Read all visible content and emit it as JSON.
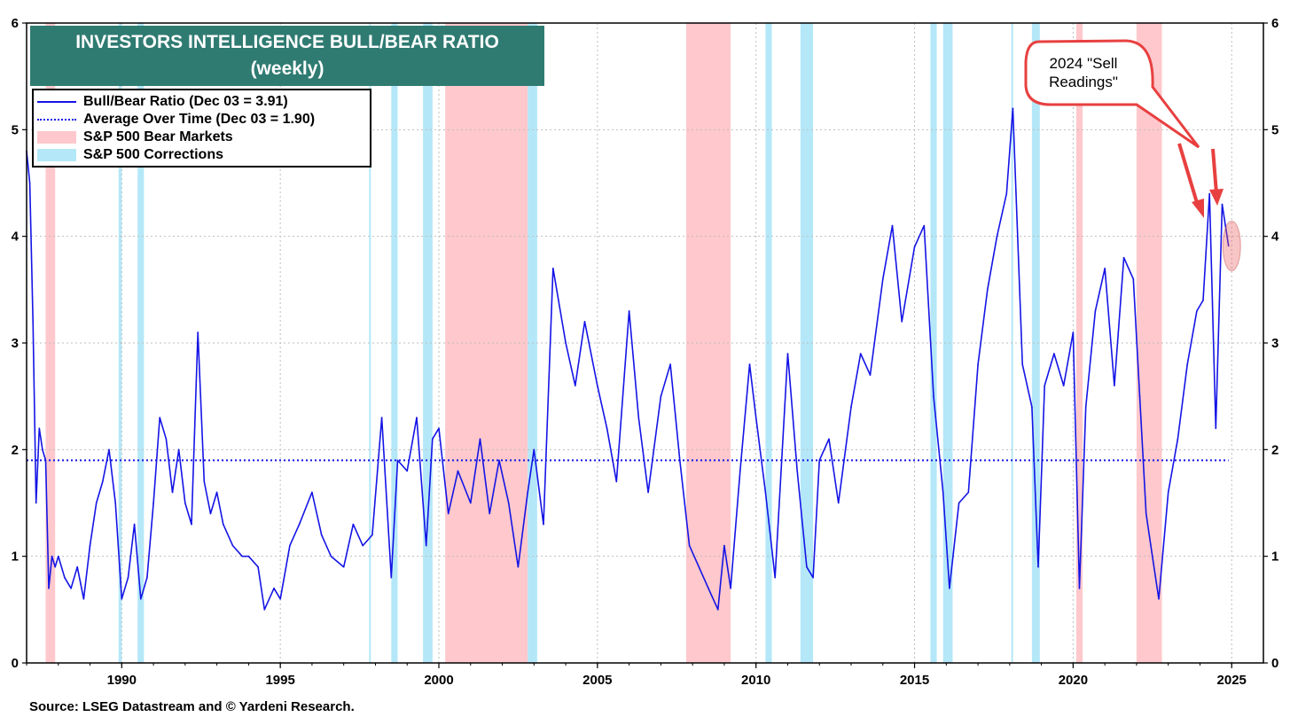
{
  "title_lines": [
    "INVESTORS INTELLIGENCE BULL/BEAR RATIO",
    "(weekly)"
  ],
  "legend": {
    "series_label": "Bull/Bear Ratio (Dec 03 = 3.91)",
    "average_label": "Average Over Time (Dec 03 = 1.90)",
    "bear_label": "S&P 500 Bear Markets",
    "correction_label": "S&P 500 Corrections"
  },
  "annotation": [
    "2024 \"Sell",
    "Readings\""
  ],
  "source": "Source: LSEG Datastream and © Yardeni Research.",
  "colors": {
    "line": "#1414e6",
    "average": "#1414e6",
    "bear": "#ffc8cc",
    "correction": "#b4e8f8",
    "title_bg": "#2f7b72",
    "callout": "#e84040"
  },
  "chart_data": {
    "type": "line",
    "title": "INVESTORS INTELLIGENCE BULL/BEAR RATIO (weekly)",
    "xlim": [
      1987.0,
      2026.0
    ],
    "ylim": [
      0,
      6
    ],
    "x_ticks": [
      1990,
      1995,
      2000,
      2005,
      2010,
      2015,
      2020,
      2025
    ],
    "y_ticks": [
      0,
      1,
      2,
      3,
      4,
      5,
      6
    ],
    "grid": true,
    "legend_position": "top-left",
    "average_value": 1.9,
    "bear_markets": [
      [
        1987.6,
        1987.9
      ],
      [
        2000.2,
        2002.8
      ],
      [
        2007.8,
        2009.2
      ],
      [
        2020.1,
        2020.3
      ],
      [
        2022.0,
        2022.8
      ]
    ],
    "corrections": [
      [
        1989.9,
        1990.0
      ],
      [
        1990.5,
        1990.7
      ],
      [
        1997.8,
        1997.85
      ],
      [
        1998.5,
        1998.7
      ],
      [
        1999.5,
        1999.8
      ],
      [
        2002.8,
        2003.1
      ],
      [
        2010.3,
        2010.5
      ],
      [
        2011.4,
        2011.8
      ],
      [
        2015.5,
        2015.7
      ],
      [
        2015.9,
        2016.2
      ],
      [
        2018.05,
        2018.1
      ],
      [
        2018.7,
        2018.95
      ]
    ],
    "series": [
      {
        "name": "Bull/Bear Ratio",
        "x": [
          1987.0,
          1987.1,
          1987.2,
          1987.3,
          1987.4,
          1987.5,
          1987.6,
          1987.7,
          1987.8,
          1987.9,
          1988.0,
          1988.2,
          1988.4,
          1988.6,
          1988.8,
          1989.0,
          1989.2,
          1989.4,
          1989.6,
          1989.8,
          1990.0,
          1990.2,
          1990.4,
          1990.6,
          1990.8,
          1991.0,
          1991.2,
          1991.4,
          1991.6,
          1991.8,
          1992.0,
          1992.2,
          1992.4,
          1992.6,
          1992.8,
          1993.0,
          1993.2,
          1993.5,
          1993.8,
          1994.0,
          1994.3,
          1994.5,
          1994.8,
          1995.0,
          1995.3,
          1995.6,
          1996.0,
          1996.3,
          1996.6,
          1997.0,
          1997.3,
          1997.6,
          1997.9,
          1998.2,
          1998.5,
          1998.7,
          1999.0,
          1999.3,
          1999.6,
          1999.8,
          2000.0,
          2000.3,
          2000.6,
          2001.0,
          2001.3,
          2001.6,
          2001.9,
          2002.2,
          2002.5,
          2002.8,
          2003.0,
          2003.3,
          2003.6,
          2004.0,
          2004.3,
          2004.6,
          2005.0,
          2005.3,
          2005.6,
          2006.0,
          2006.3,
          2006.6,
          2007.0,
          2007.3,
          2007.6,
          2007.9,
          2008.2,
          2008.5,
          2008.8,
          2009.0,
          2009.2,
          2009.5,
          2009.8,
          2010.0,
          2010.3,
          2010.6,
          2011.0,
          2011.3,
          2011.6,
          2011.8,
          2012.0,
          2012.3,
          2012.6,
          2013.0,
          2013.3,
          2013.6,
          2014.0,
          2014.3,
          2014.6,
          2015.0,
          2015.3,
          2015.6,
          2015.9,
          2016.1,
          2016.4,
          2016.7,
          2017.0,
          2017.3,
          2017.6,
          2017.9,
          2018.1,
          2018.4,
          2018.7,
          2018.9,
          2019.1,
          2019.4,
          2019.7,
          2020.0,
          2020.2,
          2020.4,
          2020.7,
          2021.0,
          2021.3,
          2021.6,
          2021.9,
          2022.1,
          2022.3,
          2022.5,
          2022.7,
          2023.0,
          2023.3,
          2023.6,
          2023.9,
          2024.1,
          2024.3,
          2024.5,
          2024.7,
          2024.9
        ],
        "values": [
          4.8,
          4.5,
          3.2,
          1.5,
          2.2,
          2.0,
          1.9,
          0.7,
          1.0,
          0.9,
          1.0,
          0.8,
          0.7,
          0.9,
          0.6,
          1.1,
          1.5,
          1.7,
          2.0,
          1.5,
          0.6,
          0.8,
          1.3,
          0.6,
          0.8,
          1.5,
          2.3,
          2.1,
          1.6,
          2.0,
          1.5,
          1.3,
          3.1,
          1.7,
          1.4,
          1.6,
          1.3,
          1.1,
          1.0,
          1.0,
          0.9,
          0.5,
          0.7,
          0.6,
          1.1,
          1.3,
          1.6,
          1.2,
          1.0,
          0.9,
          1.3,
          1.1,
          1.2,
          2.3,
          0.8,
          1.9,
          1.8,
          2.3,
          1.1,
          2.1,
          2.2,
          1.4,
          1.8,
          1.5,
          2.1,
          1.4,
          1.9,
          1.5,
          0.9,
          1.6,
          2.0,
          1.3,
          3.7,
          3.0,
          2.6,
          3.2,
          2.6,
          2.2,
          1.7,
          3.3,
          2.3,
          1.6,
          2.5,
          2.8,
          1.9,
          1.1,
          0.9,
          0.7,
          0.5,
          1.1,
          0.7,
          1.8,
          2.8,
          2.3,
          1.6,
          0.8,
          2.9,
          1.8,
          0.9,
          0.8,
          1.9,
          2.1,
          1.5,
          2.4,
          2.9,
          2.7,
          3.6,
          4.1,
          3.2,
          3.9,
          4.1,
          2.5,
          1.6,
          0.7,
          1.5,
          1.6,
          2.8,
          3.5,
          4.0,
          4.4,
          5.2,
          2.8,
          2.4,
          0.9,
          2.6,
          2.9,
          2.6,
          3.1,
          0.7,
          2.4,
          3.3,
          3.7,
          2.6,
          3.8,
          3.6,
          2.5,
          1.4,
          1.0,
          0.6,
          1.6,
          2.1,
          2.8,
          3.3,
          3.4,
          4.4,
          2.2,
          4.3,
          3.91
        ]
      },
      {
        "name": "Average Over Time",
        "x": [
          1987.0,
          2024.9
        ],
        "values": [
          1.9,
          1.9
        ]
      }
    ]
  }
}
